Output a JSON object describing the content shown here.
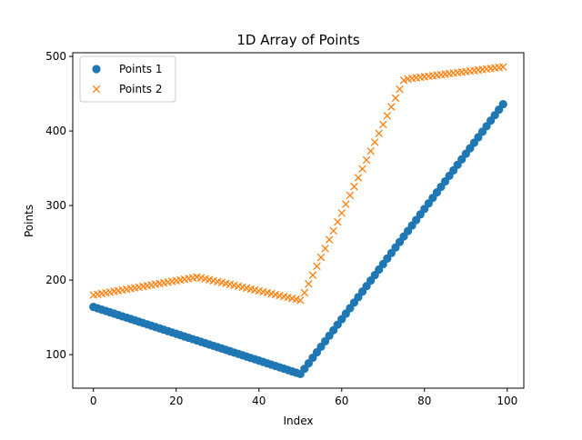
{
  "chart_data": {
    "type": "scatter",
    "title": "1D Array of Points",
    "xlabel": "Index",
    "ylabel": "Points",
    "xlim": [
      -5,
      104
    ],
    "ylim": [
      55,
      505
    ],
    "xticks": [
      0,
      20,
      40,
      60,
      80,
      100
    ],
    "yticks": [
      100,
      200,
      300,
      400,
      500
    ],
    "grid": false,
    "legend_position": "top-left",
    "series": [
      {
        "name": "Points 1",
        "marker": "circle",
        "color": "#1f77b4",
        "segments": [
          {
            "x_start": 0,
            "x_end": 50,
            "y_start": 164,
            "y_end": 74
          },
          {
            "x_start": 51,
            "x_end": 99,
            "y_start": 81,
            "y_end": 436
          }
        ]
      },
      {
        "name": "Points 2",
        "marker": "x",
        "color": "#ff7f0e",
        "segments": [
          {
            "x_start": 0,
            "x_end": 25,
            "y_start": 180,
            "y_end": 204
          },
          {
            "x_start": 26,
            "x_end": 50,
            "y_start": 203,
            "y_end": 173
          },
          {
            "x_start": 51,
            "x_end": 75,
            "y_start": 183,
            "y_end": 468
          },
          {
            "x_start": 76,
            "x_end": 99,
            "y_start": 470,
            "y_end": 486
          }
        ]
      }
    ]
  }
}
